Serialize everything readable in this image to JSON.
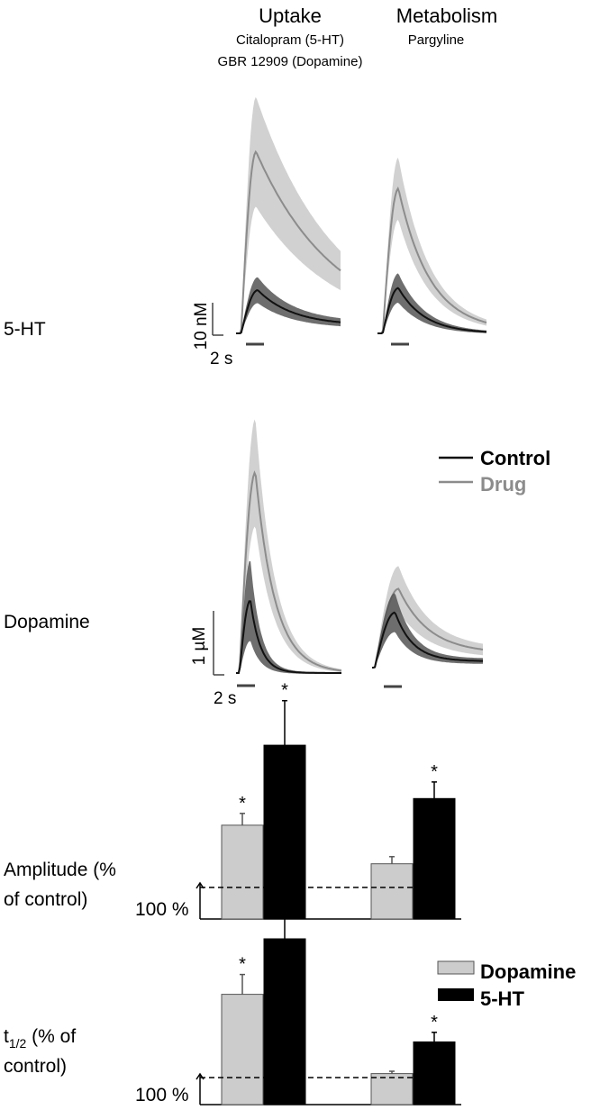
{
  "header": {
    "uptake_title": "Uptake",
    "uptake_sub1": "Citalopram (5-HT)",
    "uptake_sub2": "GBR 12909 (Dopamine)",
    "metab_title": "Metabolism",
    "metab_sub": "Pargyline"
  },
  "rows": {
    "ht": "5-HT",
    "da": "Dopamine",
    "amp_line1": "Amplitude (%",
    "amp_line2": "of control)",
    "thalf_t": "t",
    "thalf_sub": "1/2",
    "thalf_rest": " (% of",
    "thalf_line2": "control)"
  },
  "legend": {
    "control": "Control",
    "drug": "Drug",
    "dopamine": "Dopamine",
    "ht": "5-HT"
  },
  "scale": {
    "ht_y": "10 nM",
    "da_y": "1 µM",
    "time": "2 s",
    "baseline": "100 %"
  },
  "colors": {
    "control": "#111111",
    "control_band": "#555555",
    "drug": "#8c8c8c",
    "drug_band": "#cccccc",
    "bar_dopamine": "#cccccc",
    "bar_ht": "#000000"
  },
  "chart_data": [
    {
      "type": "line",
      "panel": "5-HT / Uptake",
      "t_end": 12.5,
      "control": {
        "peak": 1.0,
        "tpeak": 2.0,
        "tau": 4.2,
        "tail": 0.18,
        "sd": 0.28
      },
      "drug": {
        "peak": 4.2,
        "tpeak": 1.8,
        "tau": 9.5,
        "tail": 0.0,
        "sd": 1.25
      }
    },
    {
      "type": "line",
      "panel": "5-HT / Metabolism",
      "t_end": 12.5,
      "control": {
        "peak": 1.05,
        "tpeak": 1.8,
        "tau": 3.0,
        "tail": 0.0,
        "sd": 0.32
      },
      "drug": {
        "peak": 3.35,
        "tpeak": 1.8,
        "tau": 3.6,
        "tail": 0.05,
        "sd": 0.7
      }
    },
    {
      "type": "line",
      "panel": "Dopamine / Uptake",
      "t_end": 12.5,
      "control": {
        "peak": 1.65,
        "tpeak": 1.3,
        "tau": 1.2,
        "tail": 0.0,
        "sd": 0.9
      },
      "drug": {
        "peak": 4.55,
        "tpeak": 1.9,
        "tau": 2.3,
        "tail": 0.0,
        "sd": 1.2
      }
    },
    {
      "type": "line",
      "panel": "Dopamine / Metabolism",
      "t_end": 12.5,
      "control": {
        "peak": 1.75,
        "tpeak": 2.3,
        "tau": 2.0,
        "tail": 0.2,
        "sd": 0.6
      },
      "drug": {
        "peak": 2.5,
        "tpeak": 2.7,
        "tau": 3.4,
        "tail": 0.45,
        "sd": 0.7
      }
    },
    {
      "type": "bar",
      "metric": "Amplitude (% of control)",
      "groups": [
        "Uptake",
        "Metabolism"
      ],
      "baseline": 100,
      "ylim": [
        85,
        400
      ],
      "series": [
        {
          "name": "Dopamine",
          "values": [
            205,
            140
          ],
          "errors": [
            20,
            12
          ],
          "significant": [
            true,
            false
          ]
        },
        {
          "name": "5-HT",
          "values": [
            340,
            250
          ],
          "errors": [
            75,
            28
          ],
          "significant": [
            true,
            true
          ]
        }
      ]
    },
    {
      "type": "bar",
      "metric": "t1/2 (% of control)",
      "groups": [
        "Uptake",
        "Metabolism"
      ],
      "baseline": 100,
      "ylim": [
        80,
        320
      ],
      "series": [
        {
          "name": "Dopamine",
          "values": [
            205,
            105
          ],
          "errors": [
            25,
            3
          ],
          "significant": [
            true,
            false
          ]
        },
        {
          "name": "5-HT",
          "values": [
            275,
            145
          ],
          "errors": [
            50,
            12
          ],
          "significant": [
            true,
            true
          ]
        }
      ]
    }
  ]
}
